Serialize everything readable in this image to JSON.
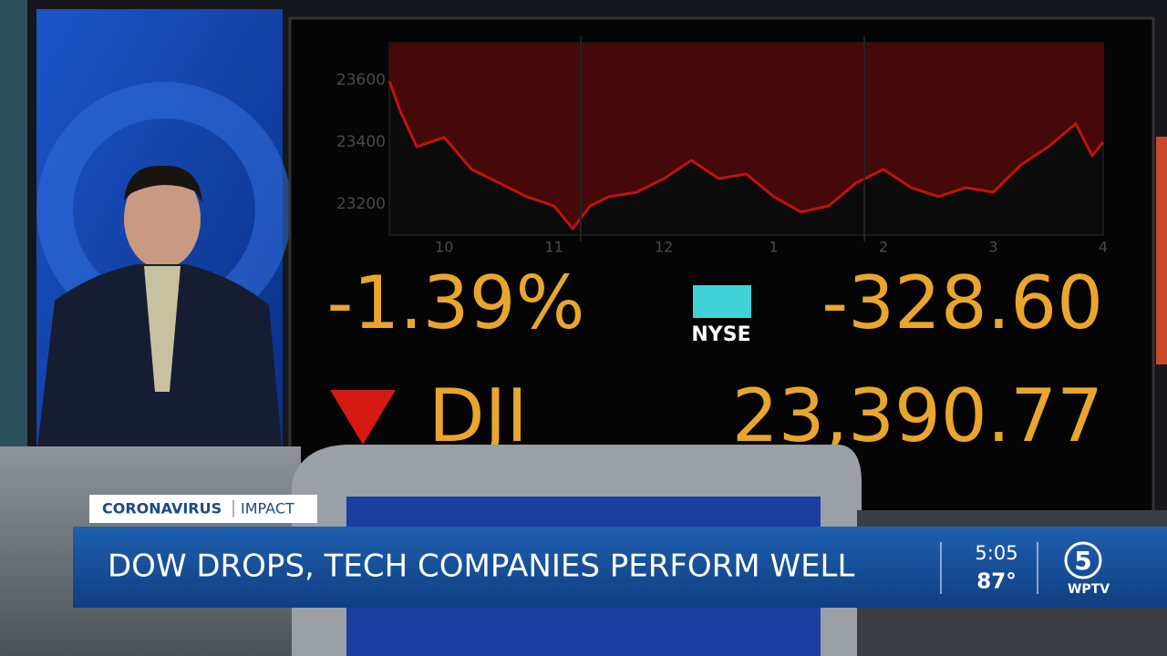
{
  "chart_data": {
    "type": "line",
    "x": [
      9.5,
      9.6,
      9.75,
      10,
      10.25,
      10.5,
      10.75,
      11,
      11.17,
      11.33,
      11.5,
      11.75,
      12,
      12.25,
      12.5,
      12.75,
      13,
      13.25,
      13.5,
      13.75,
      14,
      14.25,
      14.5,
      14.75,
      15,
      15.25,
      15.5,
      15.75,
      15.9,
      16
    ],
    "series": [
      {
        "color": "#c0130f",
        "values": [
          23597,
          23500,
          23385,
          23415,
          23312,
          23268,
          23224,
          23194,
          23121,
          23194,
          23224,
          23238,
          23282,
          23341,
          23282,
          23297,
          23224,
          23174,
          23194,
          23268,
          23312,
          23253,
          23224,
          23253,
          23238,
          23326,
          23385,
          23459,
          23356,
          23400
        ]
      }
    ],
    "xlim": [
      9.5,
      16
    ],
    "xticks": [
      10,
      11,
      12,
      {
        "value": 13,
        "label": "1"
      },
      {
        "value": 14,
        "label": "2"
      },
      {
        "value": 15,
        "label": "3"
      },
      {
        "value": 16,
        "label": "4"
      }
    ],
    "ylim": [
      23100,
      23720
    ],
    "yticks": [
      23200,
      23400,
      23600
    ]
  },
  "screen": {
    "percent_change": "-1.39%",
    "exchange": "NYSE",
    "point_change": "-328.60",
    "index": "DJI",
    "index_value": "23,390.77"
  },
  "lower_third": {
    "tag": "CORONAVIRUS",
    "subtag": "IMPACT",
    "headline": "DOW DROPS, TECH COMPANIES PERFORM WELL",
    "time": "5:05",
    "temperature": "87°",
    "channel_number": "5",
    "station": "WPTV"
  }
}
